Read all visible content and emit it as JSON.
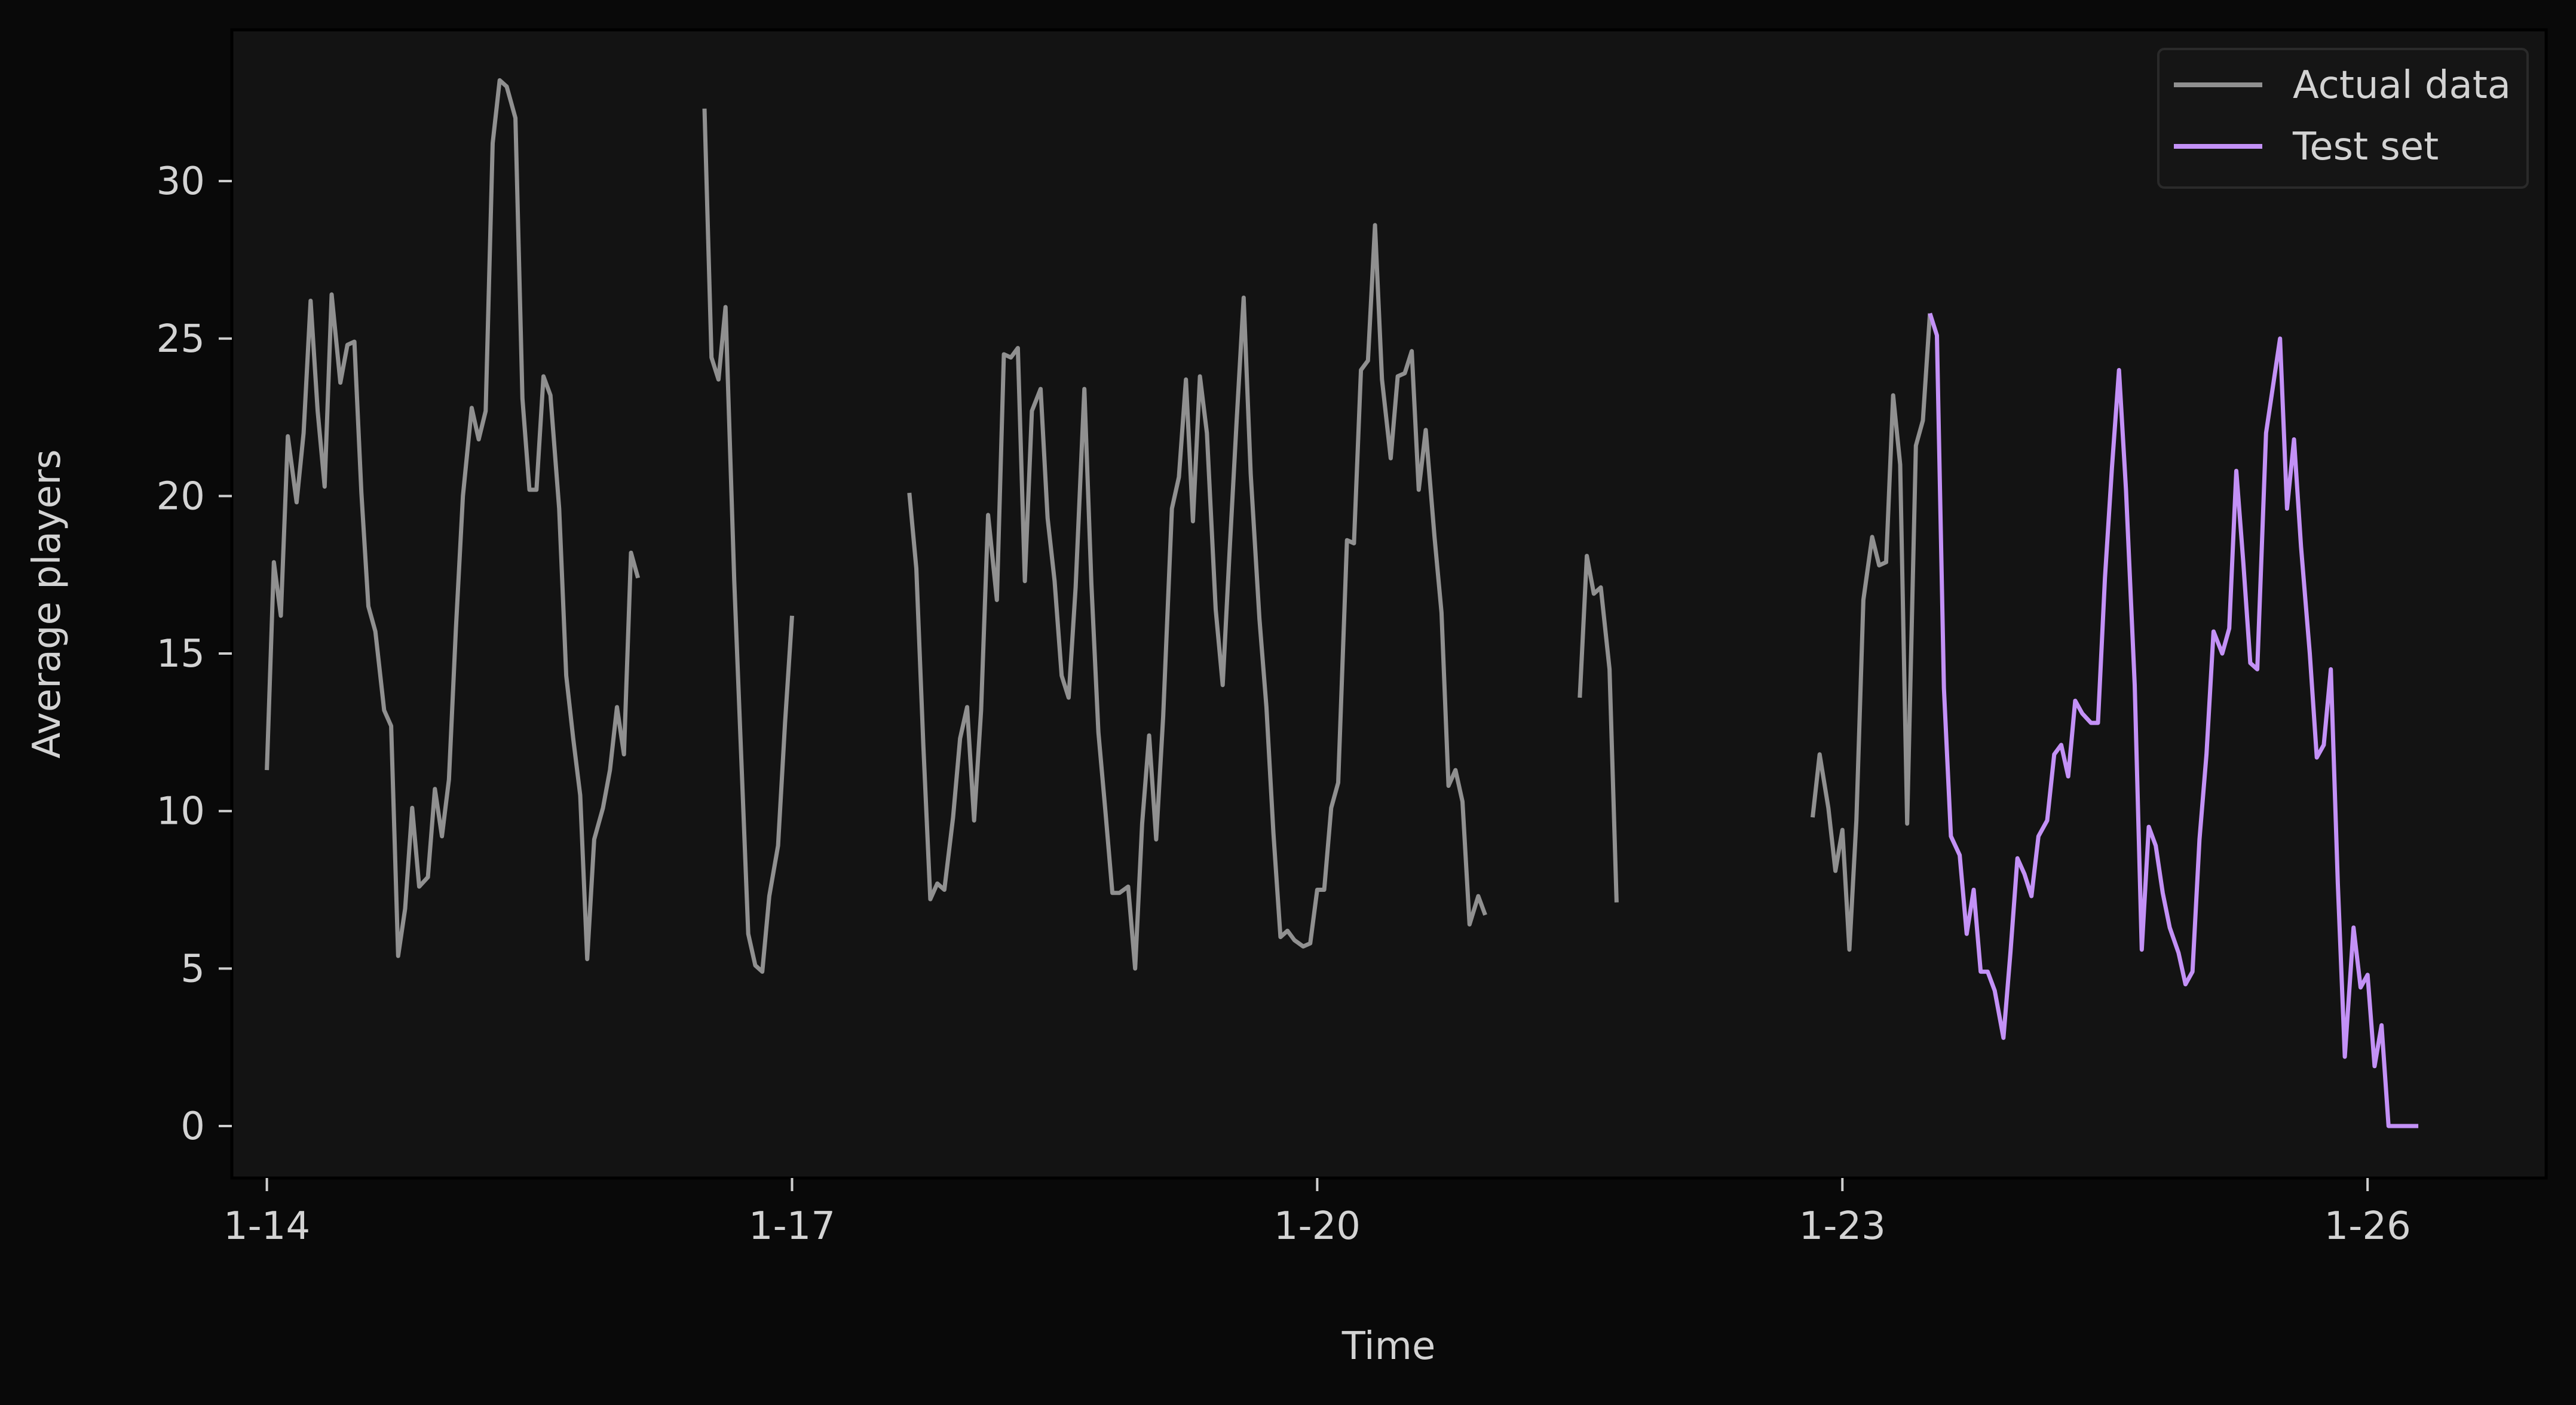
{
  "colors": {
    "figure_bg": "#090909",
    "plot_bg": "#131313",
    "text": "#d3d3d3",
    "tick": "#cfcfcf",
    "legend_bg": "#151515",
    "legend_border": "#2a2a2a"
  },
  "chart_data": {
    "type": "line",
    "title": "",
    "xlabel": "Time",
    "ylabel": "Average players",
    "x_unit": "days (1-14 = day 14 of a month)",
    "xlim": [
      13.8,
      27.02
    ],
    "ylim": [
      -1.65,
      34.8
    ],
    "x_ticks": [
      {
        "value": 14,
        "label": "1-14"
      },
      {
        "value": 17,
        "label": "1-17"
      },
      {
        "value": 20,
        "label": "1-20"
      },
      {
        "value": 23,
        "label": "1-23"
      },
      {
        "value": 26,
        "label": "1-26"
      }
    ],
    "y_ticks": [
      {
        "value": 0,
        "label": "0"
      },
      {
        "value": 5,
        "label": "5"
      },
      {
        "value": 10,
        "label": "10"
      },
      {
        "value": 15,
        "label": "15"
      },
      {
        "value": 20,
        "label": "20"
      },
      {
        "value": 25,
        "label": "25"
      },
      {
        "value": 30,
        "label": "30"
      }
    ],
    "grid": false,
    "legend": {
      "position": "top-right",
      "entries": [
        {
          "label": "Actual data",
          "color": "#909090"
        },
        {
          "label": "Test set",
          "color": "#c391f6"
        }
      ]
    },
    "series": [
      {
        "name": "Actual data",
        "color": "#909090",
        "segments": [
          [
            [
              14.0,
              11.3
            ],
            [
              14.04,
              17.9
            ],
            [
              14.08,
              16.2
            ],
            [
              14.12,
              21.9
            ],
            [
              14.17,
              19.8
            ],
            [
              14.21,
              22.0
            ],
            [
              14.25,
              26.2
            ],
            [
              14.29,
              22.7
            ],
            [
              14.33,
              20.3
            ],
            [
              14.37,
              26.4
            ],
            [
              14.42,
              23.6
            ],
            [
              14.46,
              24.8
            ],
            [
              14.5,
              24.9
            ],
            [
              14.54,
              20.1
            ],
            [
              14.58,
              16.5
            ],
            [
              14.62,
              15.7
            ],
            [
              14.67,
              13.2
            ],
            [
              14.71,
              12.7
            ],
            [
              14.75,
              5.4
            ],
            [
              14.79,
              6.9
            ],
            [
              14.83,
              10.1
            ],
            [
              14.87,
              7.6
            ],
            [
              14.92,
              7.9
            ],
            [
              14.96,
              10.7
            ],
            [
              15.0,
              9.2
            ],
            [
              15.04,
              11.0
            ],
            [
              15.08,
              15.8
            ],
            [
              15.12,
              20.0
            ],
            [
              15.17,
              22.8
            ],
            [
              15.21,
              21.8
            ],
            [
              15.25,
              22.7
            ],
            [
              15.29,
              31.2
            ],
            [
              15.33,
              33.2
            ],
            [
              15.37,
              33.0
            ],
            [
              15.42,
              32.0
            ],
            [
              15.46,
              23.1
            ],
            [
              15.5,
              20.2
            ],
            [
              15.54,
              20.2
            ],
            [
              15.58,
              23.8
            ],
            [
              15.62,
              23.2
            ],
            [
              15.67,
              19.6
            ],
            [
              15.71,
              14.3
            ],
            [
              15.75,
              12.3
            ],
            [
              15.79,
              10.5
            ],
            [
              15.83,
              5.3
            ],
            [
              15.87,
              9.1
            ],
            [
              15.92,
              10.1
            ],
            [
              15.96,
              11.3
            ],
            [
              16.0,
              13.3
            ],
            [
              16.04,
              11.8
            ],
            [
              16.08,
              18.2
            ],
            [
              16.12,
              17.4
            ]
          ],
          [
            [
              16.5,
              32.3
            ],
            [
              16.54,
              24.4
            ],
            [
              16.58,
              23.7
            ],
            [
              16.62,
              26.0
            ],
            [
              16.67,
              17.3
            ],
            [
              16.71,
              11.7
            ],
            [
              16.75,
              6.1
            ],
            [
              16.79,
              5.1
            ],
            [
              16.83,
              4.9
            ],
            [
              16.87,
              7.3
            ],
            [
              16.92,
              8.9
            ],
            [
              16.96,
              12.8
            ],
            [
              17.0,
              16.2
            ]
          ],
          [
            [
              17.67,
              20.1
            ],
            [
              17.71,
              17.7
            ],
            [
              17.75,
              12.1
            ],
            [
              17.79,
              7.2
            ],
            [
              17.83,
              7.7
            ],
            [
              17.87,
              7.5
            ],
            [
              17.92,
              9.8
            ],
            [
              17.96,
              12.3
            ],
            [
              18.0,
              13.3
            ],
            [
              18.04,
              9.7
            ],
            [
              18.08,
              13.2
            ],
            [
              18.12,
              19.4
            ],
            [
              18.17,
              16.7
            ],
            [
              18.21,
              24.5
            ],
            [
              18.25,
              24.4
            ],
            [
              18.29,
              24.7
            ],
            [
              18.33,
              17.3
            ],
            [
              18.37,
              22.7
            ],
            [
              18.42,
              23.4
            ],
            [
              18.46,
              19.3
            ],
            [
              18.5,
              17.3
            ],
            [
              18.54,
              14.3
            ],
            [
              18.58,
              13.6
            ],
            [
              18.62,
              17.1
            ],
            [
              18.67,
              23.4
            ],
            [
              18.71,
              17.2
            ],
            [
              18.75,
              12.5
            ],
            [
              18.79,
              10.0
            ],
            [
              18.83,
              7.4
            ],
            [
              18.87,
              7.4
            ],
            [
              18.92,
              7.6
            ],
            [
              18.96,
              5.0
            ],
            [
              19.0,
              9.6
            ],
            [
              19.04,
              12.4
            ],
            [
              19.08,
              9.1
            ],
            [
              19.12,
              13.0
            ],
            [
              19.17,
              19.6
            ],
            [
              19.21,
              20.6
            ],
            [
              19.25,
              23.7
            ],
            [
              19.29,
              19.2
            ],
            [
              19.33,
              23.8
            ],
            [
              19.37,
              22.0
            ],
            [
              19.42,
              16.4
            ],
            [
              19.46,
              14.0
            ],
            [
              19.5,
              18.3
            ],
            [
              19.54,
              22.4
            ],
            [
              19.58,
              26.3
            ],
            [
              19.62,
              20.7
            ],
            [
              19.67,
              16.1
            ],
            [
              19.71,
              13.3
            ],
            [
              19.75,
              9.3
            ],
            [
              19.79,
              6.0
            ],
            [
              19.83,
              6.2
            ],
            [
              19.87,
              5.9
            ],
            [
              19.92,
              5.7
            ],
            [
              19.96,
              5.8
            ],
            [
              20.0,
              7.5
            ],
            [
              20.04,
              7.5
            ],
            [
              20.08,
              10.1
            ],
            [
              20.12,
              10.9
            ],
            [
              20.17,
              18.6
            ],
            [
              20.21,
              18.5
            ],
            [
              20.25,
              24.0
            ],
            [
              20.29,
              24.3
            ],
            [
              20.33,
              28.6
            ],
            [
              20.37,
              23.7
            ],
            [
              20.42,
              21.2
            ],
            [
              20.46,
              23.8
            ],
            [
              20.5,
              23.9
            ],
            [
              20.54,
              24.6
            ],
            [
              20.58,
              20.2
            ],
            [
              20.62,
              22.1
            ],
            [
              20.67,
              18.7
            ],
            [
              20.71,
              16.3
            ],
            [
              20.75,
              10.8
            ],
            [
              20.79,
              11.3
            ],
            [
              20.83,
              10.3
            ],
            [
              20.87,
              6.4
            ],
            [
              20.92,
              7.3
            ],
            [
              20.96,
              6.7
            ]
          ],
          [
            [
              21.5,
              13.6
            ],
            [
              21.54,
              18.1
            ],
            [
              21.58,
              16.9
            ],
            [
              21.62,
              17.1
            ],
            [
              21.67,
              14.5
            ],
            [
              21.71,
              7.1
            ]
          ],
          [
            [
              22.83,
              9.8
            ],
            [
              22.87,
              11.8
            ],
            [
              22.92,
              10.1
            ],
            [
              22.96,
              8.1
            ],
            [
              23.0,
              9.4
            ],
            [
              23.04,
              5.6
            ],
            [
              23.08,
              9.7
            ],
            [
              23.12,
              16.7
            ],
            [
              23.17,
              18.7
            ],
            [
              23.21,
              17.8
            ],
            [
              23.25,
              17.9
            ],
            [
              23.29,
              23.2
            ],
            [
              23.33,
              21.0
            ],
            [
              23.37,
              9.6
            ],
            [
              23.42,
              21.6
            ],
            [
              23.46,
              22.4
            ],
            [
              23.5,
              25.8
            ]
          ]
        ]
      },
      {
        "name": "Test set",
        "color": "#c391f6",
        "segments": [
          [
            [
              23.5,
              25.8
            ],
            [
              23.54,
              25.1
            ],
            [
              23.58,
              13.9
            ],
            [
              23.62,
              9.2
            ],
            [
              23.67,
              8.6
            ],
            [
              23.71,
              6.1
            ],
            [
              23.75,
              7.5
            ],
            [
              23.79,
              4.9
            ],
            [
              23.83,
              4.9
            ],
            [
              23.87,
              4.3
            ],
            [
              23.92,
              2.8
            ],
            [
              23.96,
              5.5
            ],
            [
              24.0,
              8.5
            ],
            [
              24.04,
              8.0
            ],
            [
              24.08,
              7.3
            ],
            [
              24.12,
              9.2
            ],
            [
              24.17,
              9.7
            ],
            [
              24.21,
              11.8
            ],
            [
              24.25,
              12.1
            ],
            [
              24.29,
              11.1
            ],
            [
              24.33,
              13.5
            ],
            [
              24.37,
              13.1
            ],
            [
              24.42,
              12.8
            ],
            [
              24.46,
              12.8
            ],
            [
              24.5,
              17.4
            ],
            [
              24.54,
              20.9
            ],
            [
              24.58,
              24.0
            ],
            [
              24.62,
              20.2
            ],
            [
              24.67,
              14.0
            ],
            [
              24.71,
              5.6
            ],
            [
              24.75,
              9.5
            ],
            [
              24.79,
              8.9
            ],
            [
              24.83,
              7.4
            ],
            [
              24.87,
              6.3
            ],
            [
              24.92,
              5.5
            ],
            [
              24.96,
              4.5
            ],
            [
              25.0,
              4.9
            ],
            [
              25.04,
              9.1
            ],
            [
              25.08,
              11.8
            ],
            [
              25.12,
              15.7
            ],
            [
              25.17,
              15.0
            ],
            [
              25.21,
              15.8
            ],
            [
              25.25,
              20.8
            ],
            [
              25.29,
              17.9
            ],
            [
              25.33,
              14.7
            ],
            [
              25.37,
              14.5
            ],
            [
              25.42,
              22.0
            ],
            [
              25.46,
              23.5
            ],
            [
              25.5,
              25.0
            ],
            [
              25.54,
              19.6
            ],
            [
              25.58,
              21.8
            ],
            [
              25.62,
              18.4
            ],
            [
              25.67,
              15.0
            ],
            [
              25.71,
              11.7
            ],
            [
              25.75,
              12.1
            ],
            [
              25.79,
              14.5
            ],
            [
              25.83,
              7.7
            ],
            [
              25.87,
              2.2
            ],
            [
              25.92,
              6.3
            ],
            [
              25.96,
              4.4
            ],
            [
              26.0,
              4.8
            ],
            [
              26.04,
              1.9
            ],
            [
              26.08,
              3.2
            ],
            [
              26.12,
              0.0
            ],
            [
              26.17,
              0.0
            ],
            [
              26.21,
              0.0
            ],
            [
              26.25,
              0.0
            ],
            [
              26.29,
              0.0
            ]
          ]
        ]
      }
    ]
  }
}
